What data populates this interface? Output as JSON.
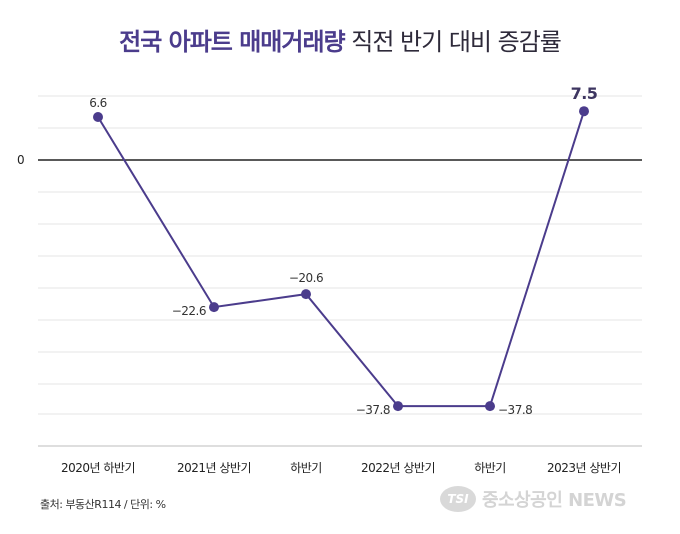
{
  "title": {
    "highlight": "전국 아파트 매매거래량",
    "rest": " 직전 반기 대비 증감률"
  },
  "chart_data": {
    "type": "line",
    "title": "전국 아파트 매매거래량 직전 반기 대비 증감률",
    "categories": [
      "2020년 하반기",
      "2021년 상반기",
      "하반기",
      "2022년 상반기",
      "하반기",
      "2023년 상반기"
    ],
    "series": [
      {
        "values": [
          6.6,
          -22.6,
          -20.6,
          -37.8,
          -37.8,
          7.5
        ]
      }
    ],
    "data_labels": [
      "6.6",
      "−22.6",
      "−20.6",
      "−37.8",
      "−37.8",
      "7.5"
    ],
    "zero_label": "0",
    "ylim": [
      -50,
      11
    ],
    "grid": true,
    "line_color": "#4b3c8c"
  },
  "source": "출처: 부동산R114 / 단위: %",
  "logo": {
    "badge": "TSI",
    "text": "중소상공인 NEWS"
  }
}
